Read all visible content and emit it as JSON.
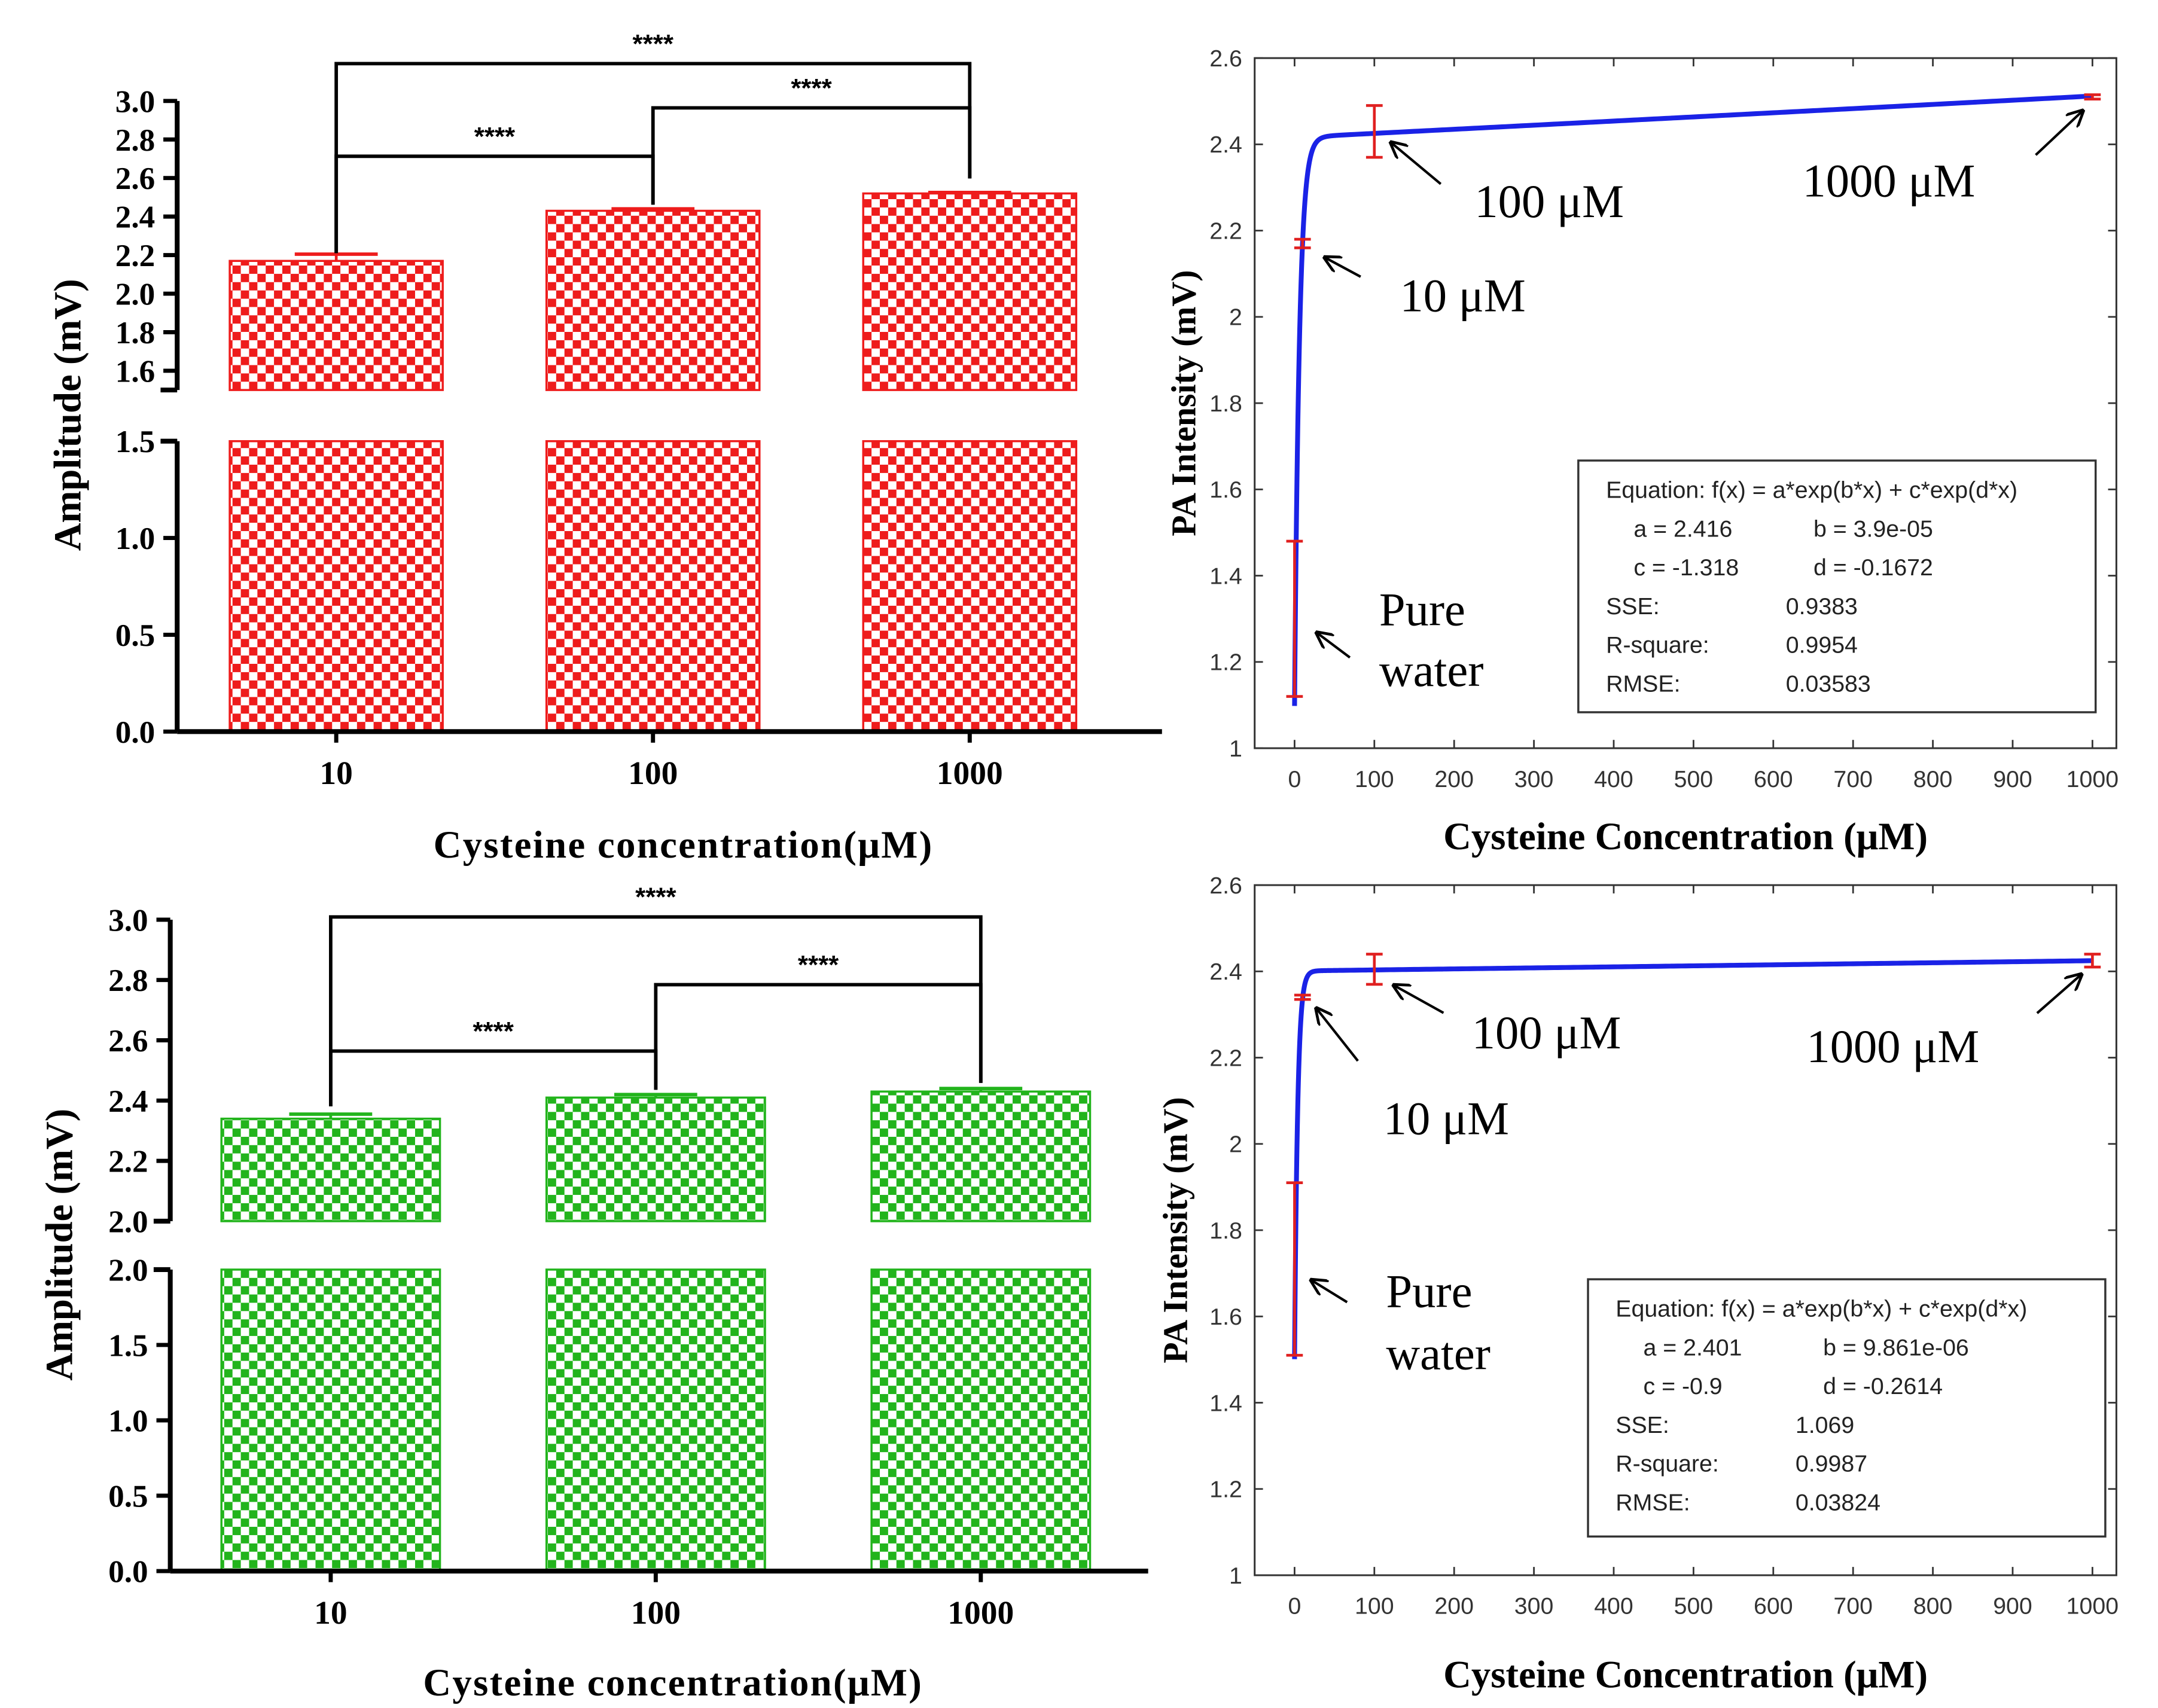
{
  "chart_data": [
    {
      "type": "bar",
      "panel": "top-left",
      "categories": [
        "10",
        "100",
        "1000"
      ],
      "values": [
        2.17,
        2.43,
        2.52
      ],
      "errors": [
        0.035,
        0.01,
        0.005
      ],
      "xlabel": "Cysteine concentration(μM)",
      "ylabel": "Amplitude  (mV)",
      "ylim_lower": [
        0,
        1.5
      ],
      "ylim_upper": [
        1.5,
        3.0
      ],
      "lower_ticks": [
        "0.0",
        "0.5",
        "1.0",
        "1.5"
      ],
      "upper_ticks": [
        "1.6",
        "1.8",
        "2.0",
        "2.2",
        "2.4",
        "2.6",
        "2.8",
        "3.0"
      ],
      "bar_color": "#ee1c1c",
      "significance": [
        {
          "from": 0,
          "to": 2,
          "label": "****"
        },
        {
          "from": 0,
          "to": 1,
          "label": "****"
        },
        {
          "from": 1,
          "to": 2,
          "label": "****"
        }
      ]
    },
    {
      "type": "line",
      "panel": "top-right",
      "xlabel": "Cysteine Concentration (μM)",
      "ylabel": "PA Intensity (mV)",
      "xlim": [
        -50,
        1030
      ],
      "ylim": [
        1,
        2.6
      ],
      "x_ticks": [
        "0",
        "100",
        "200",
        "300",
        "400",
        "500",
        "600",
        "700",
        "800",
        "900",
        "1000"
      ],
      "y_ticks": [
        "1",
        "1.2",
        "1.4",
        "1.6",
        "1.8",
        "2",
        "2.2",
        "2.4",
        "2.6"
      ],
      "fit": {
        "a": 2.416,
        "b": 3.9e-05,
        "c": -1.318,
        "d": -0.1672
      },
      "points": [
        {
          "x": 0,
          "y": 1.3,
          "err_low": 1.12,
          "err_high": 1.48
        },
        {
          "x": 10,
          "y": 2.17,
          "err_low": 2.16,
          "err_high": 2.18
        },
        {
          "x": 100,
          "y": 2.43,
          "err_low": 2.37,
          "err_high": 2.49
        },
        {
          "x": 1000,
          "y": 2.51,
          "err_low": 2.505,
          "err_high": 2.515
        }
      ],
      "line_color": "#1a22e6",
      "error_color": "#e02020",
      "annotations": {
        "pure_line1": "Pure",
        "pure_line2": "water",
        "c10": "10 μM",
        "c100": "100 μM",
        "c1000": "1000 μM"
      },
      "fit_box": {
        "equation": "Equation: f(x) = a*exp(b*x) + c*exp(d*x)",
        "a": "a = 2.416",
        "b": "b = 3.9e-05",
        "c": "c = -1.318",
        "d": "d = -0.1672",
        "sse_label": "SSE:",
        "sse": "0.9383",
        "r2_label": "R-square:",
        "r2": "0.9954",
        "rmse_label": "RMSE:",
        "rmse": "0.03583"
      }
    },
    {
      "type": "bar",
      "panel": "bottom-left",
      "categories": [
        "10",
        "100",
        "1000"
      ],
      "values": [
        2.34,
        2.41,
        2.43
      ],
      "errors": [
        0.015,
        0.01,
        0.01
      ],
      "xlabel": "Cysteine concentration(μM)",
      "ylabel": "Amplitude  (mV)",
      "ylim_lower": [
        0,
        2.0
      ],
      "ylim_upper": [
        2.0,
        3.0
      ],
      "lower_ticks": [
        "0.0",
        "0.5",
        "1.0",
        "1.5",
        "2.0"
      ],
      "upper_ticks": [
        "2.0",
        "2.2",
        "2.4",
        "2.6",
        "2.8",
        "3.0"
      ],
      "bar_color": "#22b41c",
      "significance": [
        {
          "from": 0,
          "to": 2,
          "label": "****"
        },
        {
          "from": 0,
          "to": 1,
          "label": "****"
        },
        {
          "from": 1,
          "to": 2,
          "label": "****"
        }
      ]
    },
    {
      "type": "line",
      "panel": "bottom-right",
      "xlabel": "Cysteine Concentration (μM)",
      "ylabel": "PA Intensity (mV)",
      "xlim": [
        -50,
        1030
      ],
      "ylim": [
        1,
        2.6
      ],
      "x_ticks": [
        "0",
        "100",
        "200",
        "300",
        "400",
        "500",
        "600",
        "700",
        "800",
        "900",
        "1000"
      ],
      "y_ticks": [
        "1",
        "1.2",
        "1.4",
        "1.6",
        "1.8",
        "2",
        "2.2",
        "2.4",
        "2.6"
      ],
      "fit": {
        "a": 2.401,
        "b": 9.861e-06,
        "c": -0.9,
        "d": -0.2614
      },
      "points": [
        {
          "x": 0,
          "y": 1.71,
          "err_low": 1.51,
          "err_high": 1.91
        },
        {
          "x": 10,
          "y": 2.34,
          "err_low": 2.335,
          "err_high": 2.345
        },
        {
          "x": 100,
          "y": 2.4,
          "err_low": 2.37,
          "err_high": 2.44
        },
        {
          "x": 1000,
          "y": 2.425,
          "err_low": 2.41,
          "err_high": 2.44
        }
      ],
      "line_color": "#1a22e6",
      "error_color": "#e02020",
      "annotations": {
        "pure_line1": "Pure",
        "pure_line2": "water",
        "c10": "10 μM",
        "c100": "100 μM",
        "c1000": "1000 μM"
      },
      "fit_box": {
        "equation": "Equation: f(x) = a*exp(b*x) + c*exp(d*x)",
        "a": "a = 2.401",
        "b": "b = 9.861e-06",
        "c": "c = -0.9",
        "d": "d = -0.2614",
        "sse_label": "SSE:",
        "sse": "1.069",
        "r2_label": "R-square:",
        "r2": "0.9987",
        "rmse_label": "RMSE:",
        "rmse": "0.03824"
      }
    }
  ]
}
